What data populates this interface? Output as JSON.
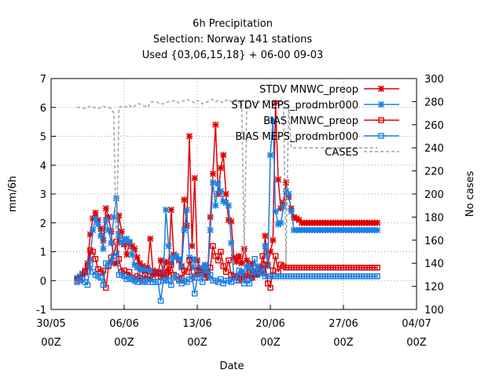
{
  "chart_data": {
    "type": "line",
    "title_lines": [
      "6h Precipitation",
      "Selection: Norway    141 stations",
      "Used {03,06,15,18} + 06-00 09-03"
    ],
    "xlabel": "Date",
    "ylabel": "mm/6h",
    "y2label": "No cases",
    "xlim": [
      0,
      35
    ],
    "x_unit": "days since 30/05 00Z",
    "ylim": [
      -1,
      7
    ],
    "y2lim": [
      100,
      300
    ],
    "grid": true,
    "legend_position": "top-right",
    "x_ticks": [
      {
        "x": 0,
        "line1": "30/05",
        "line2": "00Z"
      },
      {
        "x": 7,
        "line1": "06/06",
        "line2": "00Z"
      },
      {
        "x": 14,
        "line1": "13/06",
        "line2": "00Z"
      },
      {
        "x": 21,
        "line1": "20/06",
        "line2": "00Z"
      },
      {
        "x": 28,
        "line1": "27/06",
        "line2": "00Z"
      },
      {
        "x": 35,
        "line1": "04/07",
        "line2": "00Z"
      }
    ],
    "y_ticks": [
      -1,
      0,
      1,
      2,
      3,
      4,
      5,
      6,
      7
    ],
    "y2_ticks": [
      100,
      120,
      140,
      160,
      180,
      200,
      220,
      240,
      260,
      280,
      300
    ],
    "x": [
      2.5,
      2.75,
      3.0,
      3.25,
      3.5,
      3.75,
      4.0,
      4.25,
      4.5,
      4.75,
      5.0,
      5.25,
      5.5,
      5.75,
      6.0,
      6.25,
      6.5,
      6.75,
      7.0,
      7.25,
      7.5,
      7.75,
      8.0,
      8.25,
      8.5,
      8.75,
      9.0,
      9.25,
      9.5,
      9.75,
      10.0,
      10.25,
      10.5,
      10.75,
      11.0,
      11.25,
      11.5,
      11.75,
      12.0,
      12.25,
      12.5,
      12.75,
      13.0,
      13.25,
      13.5,
      13.75,
      14.0,
      14.25,
      14.5,
      14.75,
      15.0,
      15.25,
      15.5,
      15.75,
      16.0,
      16.25,
      16.5,
      16.75,
      17.0,
      17.25,
      17.5,
      17.75,
      18.0,
      18.25,
      18.5,
      18.75,
      19.0,
      19.25,
      19.5,
      19.75,
      20.0,
      20.25,
      20.5,
      20.75,
      21.0,
      21.25,
      21.5,
      21.75,
      22.0,
      22.25,
      22.5,
      22.75,
      23.0,
      23.25,
      23.5,
      23.75,
      24.0,
      24.25,
      24.5,
      24.75,
      25.0,
      25.25,
      25.5,
      25.75,
      26.0,
      26.25,
      26.5,
      26.75,
      27.0,
      27.25,
      27.5,
      27.75,
      28.0,
      28.25,
      28.5,
      28.75,
      29.0,
      29.25,
      29.5,
      29.75,
      30.0,
      30.25,
      30.5,
      30.75,
      31.0,
      31.25
    ],
    "series": [
      {
        "name": "STDV MNWC_preop",
        "axis": "y1",
        "color": "#e00000",
        "marker": "x-star",
        "values": [
          0.05,
          0.1,
          0.2,
          0.35,
          0.6,
          1.6,
          2.15,
          2.35,
          2.1,
          1.8,
          1.4,
          2.5,
          2.2,
          1.7,
          0.6,
          0.6,
          2.25,
          1.7,
          1.25,
          0.9,
          1.3,
          1.2,
          1.1,
          0.8,
          0.6,
          0.5,
          0.4,
          0.45,
          1.45,
          0.35,
          0.3,
          0.25,
          0.7,
          0.3,
          0.65,
          0.35,
          2.45,
          0.9,
          0.85,
          0.7,
          0.5,
          2.8,
          1.9,
          5.0,
          1.2,
          3.55,
          0.7,
          0.4,
          0.35,
          0.3,
          0.25,
          2.2,
          3.7,
          5.4,
          3.0,
          3.9,
          4.35,
          3.0,
          2.1,
          2.05,
          0.8,
          0.65,
          0.85,
          0.6,
          1.1,
          0.7,
          0.4,
          0.6,
          0.25,
          0.2,
          0.45,
          0.3,
          1.55,
          0.55,
          1.0,
          1.4,
          6.15,
          3.5,
          2.5,
          2.7,
          3.4,
          2.9,
          2.5,
          2.2,
          2.15,
          2.1,
          2.0,
          2.0,
          2.0,
          2.0,
          2.0,
          2.0,
          2.0,
          2.0,
          2.0,
          2.0,
          2.0,
          2.0,
          2.0,
          2.0,
          2.0,
          2.0,
          2.0,
          2.0,
          2.0,
          2.0,
          2.0,
          2.0,
          2.0,
          2.0,
          2.0,
          2.0,
          2.0,
          2.0,
          2.0,
          2.0
        ]
      },
      {
        "name": "STDV MEPS_prodmbr000",
        "axis": "y1",
        "color": "#1a80e6",
        "marker": "x-star",
        "values": [
          0.1,
          0.15,
          0.25,
          0.25,
          0.45,
          0.75,
          1.75,
          2.15,
          1.95,
          1.55,
          1.1,
          2.1,
          1.75,
          1.3,
          2.2,
          2.85,
          1.55,
          1.3,
          1.4,
          1.45,
          1.35,
          0.9,
          0.55,
          0.45,
          0.35,
          0.4,
          0.3,
          0.35,
          0.35,
          0.2,
          0.25,
          0.3,
          0.2,
          0.15,
          2.45,
          1.2,
          0.6,
          0.8,
          0.85,
          0.75,
          0.45,
          1.75,
          2.45,
          0.8,
          0.45,
          0.75,
          0.2,
          0.45,
          0.35,
          0.55,
          0.1,
          1.75,
          3.4,
          2.6,
          3.35,
          3.1,
          2.75,
          2.7,
          2.6,
          1.3,
          0.15,
          0.1,
          0.2,
          0.3,
          0.1,
          0.5,
          0.45,
          0.1,
          0.3,
          0.5,
          0.4,
          0.45,
          1.2,
          0.5,
          4.35,
          5.55,
          2.4,
          1.95,
          2.0,
          2.55,
          3.1,
          3.0,
          2.4,
          1.75,
          1.75,
          1.75,
          1.75,
          1.75,
          1.75,
          1.75,
          1.75,
          1.75,
          1.75,
          1.75,
          1.75,
          1.75,
          1.75,
          1.75,
          1.75,
          1.75,
          1.75,
          1.75,
          1.75,
          1.75,
          1.75,
          1.75,
          1.75,
          1.75,
          1.75,
          1.75,
          1.75,
          1.75,
          1.75,
          1.75,
          1.75,
          1.75
        ]
      },
      {
        "name": "BIAS MNWC_preop",
        "axis": "y1",
        "color": "#e00000",
        "marker": "square",
        "values": [
          0.0,
          0.05,
          0.1,
          0.3,
          0.5,
          1.05,
          1.0,
          0.75,
          0.4,
          0.3,
          0.35,
          -0.25,
          0.5,
          0.8,
          0.85,
          1.35,
          0.75,
          0.3,
          0.35,
          0.2,
          0.3,
          0.1,
          0.05,
          0.15,
          0.1,
          0.0,
          0.2,
          0.05,
          0.15,
          0.1,
          0.3,
          0.25,
          0.15,
          0.1,
          0.2,
          0.15,
          0.55,
          0.2,
          0.15,
          0.05,
          0.1,
          0.35,
          0.3,
          0.7,
          0.15,
          0.1,
          0.35,
          0.3,
          0.25,
          0.1,
          0.3,
          0.45,
          1.2,
          0.85,
          0.7,
          1.0,
          0.5,
          0.3,
          0.7,
          0.2,
          0.15,
          0.1,
          0.0,
          0.05,
          0.15,
          0.15,
          0.2,
          0.1,
          0.2,
          0.25,
          0.3,
          0.85,
          0.55,
          -0.1,
          -0.25,
          0.35,
          0.85,
          0.3,
          0.55,
          0.5,
          0.45,
          0.45,
          0.45,
          0.45,
          0.45,
          0.45,
          0.45,
          0.45,
          0.45,
          0.45,
          0.45,
          0.45,
          0.45,
          0.45,
          0.45,
          0.45,
          0.45,
          0.45,
          0.45,
          0.45,
          0.45,
          0.45,
          0.45,
          0.45,
          0.45,
          0.45,
          0.45,
          0.45,
          0.45,
          0.45,
          0.45,
          0.45,
          0.45,
          0.45,
          0.45,
          0.45
        ]
      },
      {
        "name": "BIAS MEPS_prodmbr000",
        "axis": "y1",
        "color": "#1a80e6",
        "marker": "square",
        "values": [
          -0.05,
          0.0,
          0.05,
          -0.05,
          -0.15,
          0.55,
          0.3,
          0.2,
          0.15,
          0.1,
          -0.15,
          0.6,
          0.55,
          0.65,
          0.85,
          0.95,
          0.2,
          0.2,
          0.15,
          0.05,
          0.1,
          0.05,
          0.0,
          -0.05,
          0.05,
          -0.05,
          0.0,
          -0.05,
          0.05,
          -0.05,
          -0.05,
          -0.05,
          -0.7,
          0.0,
          0.05,
          0.0,
          -0.15,
          0.1,
          0.15,
          0.0,
          -0.1,
          0.0,
          -0.05,
          0.05,
          0.15,
          -0.45,
          0.1,
          0.25,
          -0.05,
          0.5,
          0.35,
          0.2,
          0.0,
          0.0,
          -0.05,
          0.05,
          -0.1,
          0.0,
          0.0,
          -0.05,
          0.1,
          0.0,
          0.35,
          0.3,
          -0.1,
          0.0,
          -0.1,
          0.3,
          0.75,
          0.2,
          0.3,
          0.25,
          0.15,
          0.15,
          0.15,
          0.15,
          0.15,
          0.15,
          0.15,
          0.15,
          0.15,
          0.15,
          0.15,
          0.15,
          0.15,
          0.15,
          0.15,
          0.15,
          0.15,
          0.15,
          0.15,
          0.15,
          0.15,
          0.15,
          0.15,
          0.15,
          0.15,
          0.15,
          0.15,
          0.15,
          0.15,
          0.15,
          0.15,
          0.15,
          0.15,
          0.15,
          0.15,
          0.15,
          0.15,
          0.15,
          0.15,
          0.15,
          0.15,
          0.15,
          0.15,
          0.15
        ]
      },
      {
        "name": "CASES",
        "axis": "y2",
        "color": "#a0a0a0",
        "marker": "none",
        "dashed": true,
        "values": [
          275,
          275,
          275,
          274,
          275,
          276,
          275,
          275,
          274,
          275,
          276,
          275,
          275,
          274,
          270,
          150,
          275,
          276,
          275,
          276,
          277,
          275,
          276,
          278,
          278,
          277,
          276,
          275,
          279,
          280,
          280,
          279,
          278,
          278,
          279,
          280,
          280,
          281,
          280,
          279,
          280,
          281,
          282,
          281,
          280,
          279,
          281,
          280,
          278,
          279,
          280,
          281,
          282,
          280,
          281,
          280,
          279,
          281,
          282,
          280,
          281,
          282,
          279,
          280,
          150,
          282,
          281,
          280,
          279,
          278,
          280,
          279,
          282,
          281,
          280,
          279,
          278,
          277,
          282,
          280,
          140,
          276,
          240,
          240,
          240,
          240,
          240,
          240,
          240,
          240,
          240,
          240,
          240,
          240,
          240,
          240,
          240,
          240,
          240,
          240,
          240,
          240,
          240,
          240,
          240,
          240,
          240,
          240,
          240,
          240,
          240,
          240,
          240,
          240,
          240,
          240
        ]
      }
    ]
  }
}
